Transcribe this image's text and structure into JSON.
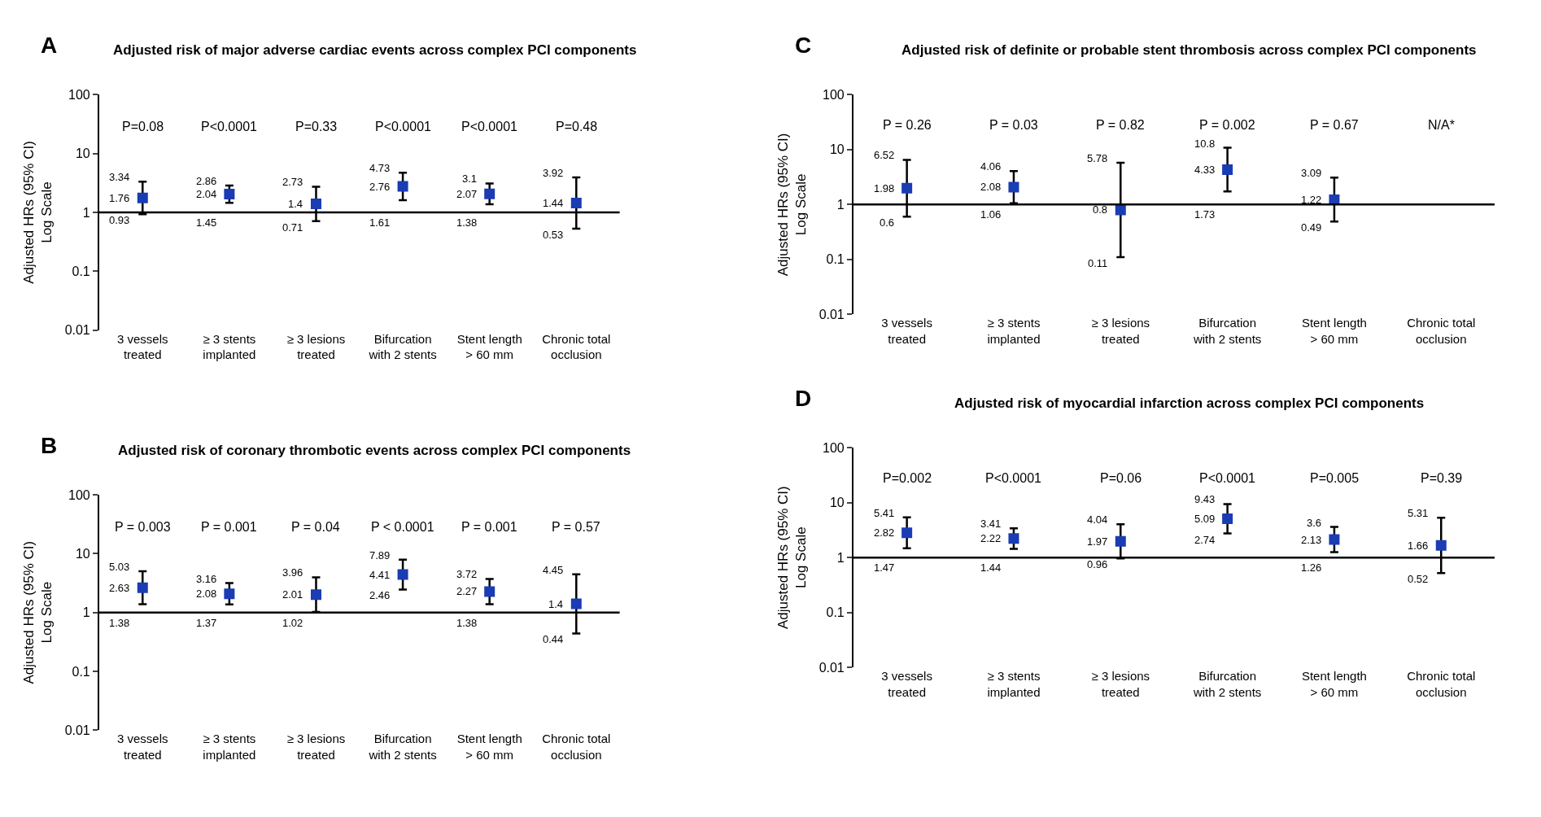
{
  "chart_data": [
    {
      "type": "scatter",
      "title": "Adjusted risk of major adverse cardiac events across complex PCI components",
      "ylabel": "Adjusted HRs (95% CI)\nLog Scale",
      "annotations": [
        "A",
        "P=0.08",
        "P<0.0001",
        "P=0.33",
        "P<0.0001",
        "P<0.0001",
        "P=0.48",
        {
          "text": "3.34",
          "x": "3 vessels\ntreated",
          "y": 3.34
        },
        {
          "text": "0.93",
          "x": "3 vessels\ntreated",
          "y": 0.93
        },
        {
          "text": "2.86",
          "x": "≥ 3 stents\nimplanted",
          "y": 2.86
        },
        {
          "text": "1.45",
          "x": "≥ 3 stents\nimplanted",
          "y": 1.45
        },
        {
          "text": "2.73",
          "x": "≥ 3 lesions\ntreated",
          "y": 2.73
        },
        {
          "text": "0.71",
          "x": "≥ 3 lesions\ntreated",
          "y": 0.71
        },
        {
          "text": "4.73",
          "x": "Bifurcation\nwith 2 stents",
          "y": 4.73
        },
        {
          "text": "1.61",
          "x": "Bifurcation\nwith 2 stents",
          "y": 1.61
        },
        {
          "text": "3.1",
          "x": "Stent length\n> 60 mm",
          "y": 3.1
        },
        {
          "text": "1.38",
          "x": "Stent length\n> 60 mm",
          "y": 1.38
        },
        {
          "text": "3.92",
          "x": "Chronic total\nocclusion",
          "y": 3.92
        },
        {
          "text": "0.53",
          "x": "Chronic total\nocclusion",
          "y": 0.53
        }
      ],
      "categories": [
        "3 vessels\ntreated",
        "≥ 3 stents\nimplanted",
        "≥ 3 lesions\ntreated",
        "Bifurcation\nwith 2 stents",
        "Stent length\n> 60 mm",
        "Chronic total\nocclusion"
      ],
      "values": [
        1.76,
        2.04,
        1.4,
        2.76,
        2.07,
        1.44
      ],
      "errors": [
        [
          0.93,
          3.34
        ],
        [
          1.45,
          2.86
        ],
        [
          0.71,
          2.73
        ],
        [
          1.61,
          4.73
        ],
        [
          1.38,
          3.1
        ],
        [
          0.53,
          3.92
        ]
      ],
      "color": "#1a3cb4",
      "marker": "square",
      "log": true,
      "ylim": [
        0.01,
        100
      ],
      "yticks": [
        0.01,
        0.1,
        1,
        10,
        100
      ],
      "grid": false,
      "data_labels": true,
      "ref_lines": [
        {
          "axis": "y",
          "value": 1,
          "color": "#000000"
        }
      ]
    },
    {
      "type": "scatter",
      "title": "Adjusted risk of coronary thrombotic events across complex PCI components",
      "ylabel": "Adjusted HRs (95% CI)\nLog Scale",
      "annotations": [
        "B",
        "P = 0.003",
        "P = 0.001",
        "P = 0.04",
        "P < 0.0001",
        "P = 0.001",
        "P = 0.57",
        {
          "text": "5.03",
          "x": "3 vessels\ntreated",
          "y": 5.03
        },
        {
          "text": "1.38",
          "x": "3 vessels\ntreated",
          "y": 1.38
        },
        {
          "text": "3.16",
          "x": "≥ 3 stents\nimplanted",
          "y": 3.16
        },
        {
          "text": "1.37",
          "x": "≥ 3 stents\nimplanted",
          "y": 1.37
        },
        {
          "text": "3.96",
          "x": "≥ 3 lesions\ntreated",
          "y": 3.96
        },
        {
          "text": "1.02",
          "x": "≥ 3 lesions\ntreated",
          "y": 1.02
        },
        {
          "text": "7.89",
          "x": "Bifurcation\nwith 2 stents",
          "y": 7.89
        },
        {
          "text": "2.46",
          "x": "Bifurcation\nwith 2 stents",
          "y": 2.46
        },
        {
          "text": "3.72",
          "x": "Stent length\n> 60 mm",
          "y": 3.72
        },
        {
          "text": "1.38",
          "x": "Stent length\n> 60 mm",
          "y": 1.38
        },
        {
          "text": "4.45",
          "x": "Chronic total\nocclusion",
          "y": 4.45
        },
        {
          "text": "0.44",
          "x": "Chronic total\nocclusion",
          "y": 0.44
        }
      ],
      "categories": [
        "3 vessels\ntreated",
        "≥ 3 stents\nimplanted",
        "≥ 3 lesions\ntreated",
        "Bifurcation\nwith 2 stents",
        "Stent length\n> 60 mm",
        "Chronic total\nocclusion"
      ],
      "values": [
        2.63,
        2.08,
        2.01,
        4.41,
        2.27,
        1.4
      ],
      "errors": [
        [
          1.38,
          5.03
        ],
        [
          1.37,
          3.16
        ],
        [
          1.02,
          3.96
        ],
        [
          2.46,
          7.89
        ],
        [
          1.38,
          3.72
        ],
        [
          0.44,
          4.45
        ]
      ],
      "color": "#1a3cb4",
      "marker": "square",
      "log": true,
      "ylim": [
        0.01,
        100
      ],
      "yticks": [
        0.01,
        0.1,
        1,
        10,
        100
      ],
      "grid": false,
      "data_labels": true,
      "ref_lines": [
        {
          "axis": "y",
          "value": 1,
          "color": "#000000"
        }
      ]
    },
    {
      "type": "scatter",
      "title": "Adjusted risk of definite or probable stent thrombosis across complex PCI components",
      "ylabel": "Adjusted HRs (95% CI)\nLog Scale",
      "annotations": [
        "C",
        "P = 0.26",
        "P = 0.03",
        "P = 0.82",
        "P = 0.002",
        "P = 0.67",
        "N/A*",
        {
          "text": "6.52",
          "x": "3 vessels\ntreated",
          "y": 6.52
        },
        {
          "text": "0.6",
          "x": "3 vessels\ntreated",
          "y": 0.6
        },
        {
          "text": "4.06",
          "x": "≥ 3 stents\nimplanted",
          "y": 4.06
        },
        {
          "text": "1.06",
          "x": "≥ 3 stents\nimplanted",
          "y": 1.06
        },
        {
          "text": "5.78",
          "x": "≥ 3 lesions\ntreated",
          "y": 5.78
        },
        {
          "text": "0.11",
          "x": "≥ 3 lesions\ntreated",
          "y": 0.11
        },
        {
          "text": "10.8",
          "x": "Bifurcation\nwith 2 stents",
          "y": 10.8
        },
        {
          "text": "1.73",
          "x": "Bifurcation\nwith 2 stents",
          "y": 1.73
        },
        {
          "text": "3.09",
          "x": "Stent length\n> 60 mm",
          "y": 3.09
        },
        {
          "text": "0.49",
          "x": "Stent length\n> 60 mm",
          "y": 0.49
        }
      ],
      "categories": [
        "3 vessels\ntreated",
        "≥ 3 stents\nimplanted",
        "≥ 3 lesions\ntreated",
        "Bifurcation\nwith 2 stents",
        "Stent length\n> 60 mm",
        "Chronic total\nocclusion"
      ],
      "values": [
        1.98,
        2.08,
        0.8,
        4.33,
        1.22,
        null
      ],
      "errors": [
        [
          0.6,
          6.52
        ],
        [
          1.06,
          4.06
        ],
        [
          0.11,
          5.78
        ],
        [
          1.73,
          10.8
        ],
        [
          0.49,
          3.09
        ],
        null
      ],
      "color": "#1a3cb4",
      "marker": "square",
      "log": true,
      "ylim": [
        0.01,
        100
      ],
      "yticks": [
        0.01,
        0.1,
        1,
        10,
        100
      ],
      "grid": false,
      "data_labels": true,
      "ref_lines": [
        {
          "axis": "y",
          "value": 1,
          "color": "#000000"
        }
      ]
    },
    {
      "type": "scatter",
      "title": "Adjusted risk of myocardial infarction across complex PCI components",
      "ylabel": "Adjusted HRs (95% CI)\nLog Scale",
      "annotations": [
        "D",
        "P=0.002",
        "P<0.0001",
        "P=0.06",
        "P<0.0001",
        "P=0.005",
        "P=0.39",
        {
          "text": "5.41",
          "x": "3 vessels\ntreated",
          "y": 5.41
        },
        {
          "text": "1.47",
          "x": "3 vessels\ntreated",
          "y": 1.47
        },
        {
          "text": "3.41",
          "x": "≥ 3 stents\nimplanted",
          "y": 3.41
        },
        {
          "text": "1.44",
          "x": "≥ 3 stents\nimplanted",
          "y": 1.44
        },
        {
          "text": "4.04",
          "x": "≥ 3 lesions\ntreated",
          "y": 4.04
        },
        {
          "text": "0.96",
          "x": "≥ 3 lesions\ntreated",
          "y": 0.96
        },
        {
          "text": "9.43",
          "x": "Bifurcation\nwith 2 stents",
          "y": 9.43
        },
        {
          "text": "2.74",
          "x": "Bifurcation\nwith 2 stents",
          "y": 2.74
        },
        {
          "text": "3.6",
          "x": "Stent length\n> 60 mm",
          "y": 3.6
        },
        {
          "text": "1.26",
          "x": "Stent length\n> 60 mm",
          "y": 1.26
        },
        {
          "text": "5.31",
          "x": "Chronic total\nocclusion",
          "y": 5.31
        },
        {
          "text": "0.52",
          "x": "Chronic total\nocclusion",
          "y": 0.52
        }
      ],
      "categories": [
        "3 vessels\ntreated",
        "≥ 3 stents\nimplanted",
        "≥ 3 lesions\ntreated",
        "Bifurcation\nwith 2 stents",
        "Stent length\n> 60 mm",
        "Chronic total\nocclusion"
      ],
      "values": [
        2.82,
        2.22,
        1.97,
        5.09,
        2.13,
        1.66
      ],
      "errors": [
        [
          1.47,
          5.41
        ],
        [
          1.44,
          3.41
        ],
        [
          0.96,
          4.04
        ],
        [
          2.74,
          9.43
        ],
        [
          1.26,
          3.6
        ],
        [
          0.52,
          5.31
        ]
      ],
      "color": "#1a3cb4",
      "marker": "square",
      "log": true,
      "ylim": [
        0.01,
        100
      ],
      "yticks": [
        0.01,
        0.1,
        1,
        10,
        100
      ],
      "grid": false,
      "data_labels": true,
      "ref_lines": [
        {
          "axis": "y",
          "value": 1,
          "color": "#000000"
        }
      ]
    }
  ]
}
